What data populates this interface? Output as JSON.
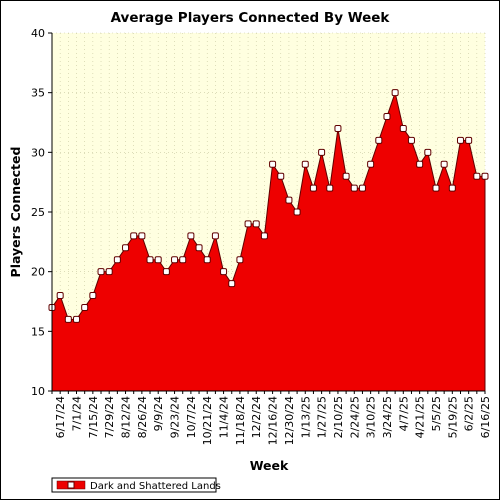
{
  "chart_data": {
    "type": "area",
    "title": "Average Players Connected By Week",
    "xlabel": "Week",
    "ylabel": "Players Connected",
    "ylim": [
      10,
      40
    ],
    "y_ticks": [
      10,
      15,
      20,
      25,
      30,
      35,
      40
    ],
    "grid": true,
    "legend_position": "bottom-left",
    "x_tick_labels": [
      "6/17/24",
      "7/1/24",
      "7/15/24",
      "7/29/24",
      "8/12/24",
      "8/26/24",
      "9/9/24",
      "9/23/24",
      "10/7/24",
      "10/21/24",
      "11/4/24",
      "11/18/24",
      "12/2/24",
      "12/16/24",
      "12/30/24",
      "1/13/25",
      "1/27/25",
      "2/10/25",
      "2/24/25",
      "3/10/25",
      "3/24/25",
      "4/7/25",
      "4/21/25",
      "5/5/25",
      "5/19/25",
      "6/2/25",
      "6/16/25"
    ],
    "x": [
      "6/10/24",
      "6/17/24",
      "6/24/24",
      "7/1/24",
      "7/8/24",
      "7/15/24",
      "7/22/24",
      "7/29/24",
      "8/5/24",
      "8/12/24",
      "8/19/24",
      "8/26/24",
      "9/2/24",
      "9/9/24",
      "9/16/24",
      "9/23/24",
      "9/30/24",
      "10/7/24",
      "10/14/24",
      "10/21/24",
      "10/28/24",
      "11/4/24",
      "11/11/24",
      "11/18/24",
      "11/25/24",
      "12/2/24",
      "12/9/24",
      "12/16/24",
      "12/23/24",
      "12/30/24",
      "1/6/25",
      "1/13/25",
      "1/20/25",
      "1/27/25",
      "2/3/25",
      "2/10/25",
      "2/17/25",
      "2/24/25",
      "3/3/25",
      "3/10/25",
      "3/17/25",
      "3/24/25",
      "3/31/25",
      "4/7/25",
      "4/14/25",
      "4/21/25",
      "4/28/25",
      "5/5/25",
      "5/12/25",
      "5/19/25",
      "5/26/25",
      "6/2/25",
      "6/9/25",
      "6/16/25"
    ],
    "series": [
      {
        "name": "Dark and Shattered Lands",
        "color": "#ee0000",
        "values": [
          17,
          18,
          16,
          16,
          17,
          18,
          20,
          20,
          21,
          22,
          23,
          23,
          21,
          21,
          20,
          21,
          21,
          23,
          22,
          21,
          23,
          20,
          19,
          21,
          24,
          24,
          23,
          29,
          28,
          26,
          25,
          29,
          27,
          30,
          27,
          32,
          28,
          27,
          27,
          29,
          31,
          33,
          35,
          32,
          31,
          29,
          30,
          27,
          29,
          27,
          31,
          31,
          28,
          28
        ]
      }
    ]
  }
}
